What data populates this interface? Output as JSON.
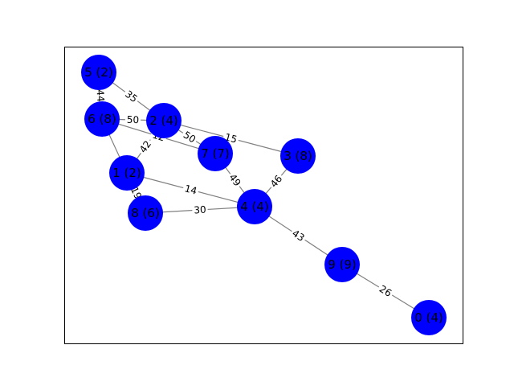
{
  "graph": {
    "node_color": "#0000ff",
    "edge_color": "#808080",
    "nodes": [
      {
        "id": "0",
        "label": "0 (4)"
      },
      {
        "id": "1",
        "label": "1 (2)"
      },
      {
        "id": "2",
        "label": "2 (4)"
      },
      {
        "id": "3",
        "label": "3 (8)"
      },
      {
        "id": "4",
        "label": "4 (4)"
      },
      {
        "id": "5",
        "label": "5 (2)"
      },
      {
        "id": "6",
        "label": "6 (8)"
      },
      {
        "id": "7",
        "label": "7 (7)"
      },
      {
        "id": "8",
        "label": "8 (6)"
      },
      {
        "id": "9",
        "label": "9 (9)"
      }
    ],
    "edges": [
      {
        "source": "5",
        "target": "2",
        "weight": "35"
      },
      {
        "source": "5",
        "target": "6",
        "weight": "44"
      },
      {
        "source": "6",
        "target": "2",
        "weight": "50"
      },
      {
        "source": "6",
        "target": "7",
        "weight": "12"
      },
      {
        "source": "6",
        "target": "1",
        "weight": ""
      },
      {
        "source": "2",
        "target": "7",
        "weight": "50"
      },
      {
        "source": "2",
        "target": "3",
        "weight": "15"
      },
      {
        "source": "2",
        "target": "1",
        "weight": "42"
      },
      {
        "source": "1",
        "target": "8",
        "weight": "19"
      },
      {
        "source": "1",
        "target": "4",
        "weight": "14"
      },
      {
        "source": "8",
        "target": "4",
        "weight": "30"
      },
      {
        "source": "7",
        "target": "4",
        "weight": "49"
      },
      {
        "source": "3",
        "target": "4",
        "weight": "46"
      },
      {
        "source": "4",
        "target": "9",
        "weight": "43"
      },
      {
        "source": "9",
        "target": "0",
        "weight": "26"
      }
    ]
  }
}
